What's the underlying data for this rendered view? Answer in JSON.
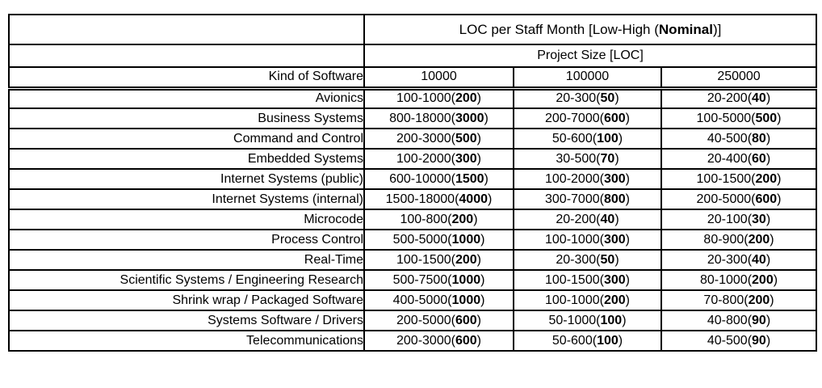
{
  "header": {
    "title_prefix": "LOC per Staff Month [Low-High (",
    "title_bold": "Nominal",
    "title_suffix": ")]",
    "subtitle": "Project Size [LOC]",
    "row_header": "Kind of Software",
    "size_columns": [
      "10000",
      "100000",
      "250000"
    ]
  },
  "rows": [
    {
      "kind": "Avionics",
      "cells": [
        {
          "range": "100-1000",
          "nominal": "200"
        },
        {
          "range": "20-300",
          "nominal": "50"
        },
        {
          "range": "20-200",
          "nominal": "40"
        }
      ]
    },
    {
      "kind": "Business Systems",
      "cells": [
        {
          "range": "800-18000",
          "nominal": "3000"
        },
        {
          "range": "200-7000",
          "nominal": "600"
        },
        {
          "range": "100-5000",
          "nominal": "500"
        }
      ]
    },
    {
      "kind": "Command and Control",
      "cells": [
        {
          "range": "200-3000",
          "nominal": "500"
        },
        {
          "range": "50-600",
          "nominal": "100"
        },
        {
          "range": "40-500",
          "nominal": "80"
        }
      ]
    },
    {
      "kind": "Embedded Systems",
      "cells": [
        {
          "range": "100-2000",
          "nominal": "300"
        },
        {
          "range": "30-500",
          "nominal": "70"
        },
        {
          "range": "20-400",
          "nominal": "60"
        }
      ]
    },
    {
      "kind": "Internet Systems (public)",
      "cells": [
        {
          "range": "600-10000",
          "nominal": "1500"
        },
        {
          "range": "100-2000",
          "nominal": "300"
        },
        {
          "range": "100-1500",
          "nominal": "200"
        }
      ]
    },
    {
      "kind": "Internet Systems (internal)",
      "cells": [
        {
          "range": "1500-18000",
          "nominal": "4000"
        },
        {
          "range": "300-7000",
          "nominal": "800"
        },
        {
          "range": "200-5000",
          "nominal": "600"
        }
      ]
    },
    {
      "kind": "Microcode",
      "cells": [
        {
          "range": "100-800",
          "nominal": "200"
        },
        {
          "range": "20-200",
          "nominal": "40"
        },
        {
          "range": "20-100",
          "nominal": "30"
        }
      ]
    },
    {
      "kind": "Process Control",
      "cells": [
        {
          "range": "500-5000",
          "nominal": "1000"
        },
        {
          "range": "100-1000",
          "nominal": "300"
        },
        {
          "range": "80-900",
          "nominal": "200"
        }
      ]
    },
    {
      "kind": "Real-Time",
      "cells": [
        {
          "range": "100-1500",
          "nominal": "200"
        },
        {
          "range": "20-300",
          "nominal": "50"
        },
        {
          "range": "20-300",
          "nominal": "40"
        }
      ]
    },
    {
      "kind": "Scientific Systems / Engineering Research",
      "cells": [
        {
          "range": "500-7500",
          "nominal": "1000"
        },
        {
          "range": "100-1500",
          "nominal": "300"
        },
        {
          "range": "80-1000",
          "nominal": "200"
        }
      ]
    },
    {
      "kind": "Shrink wrap / Packaged Software",
      "cells": [
        {
          "range": "400-5000",
          "nominal": "1000"
        },
        {
          "range": "100-1000",
          "nominal": "200"
        },
        {
          "range": "70-800",
          "nominal": "200"
        }
      ]
    },
    {
      "kind": "Systems Software / Drivers",
      "cells": [
        {
          "range": "200-5000",
          "nominal": "600"
        },
        {
          "range": "50-1000",
          "nominal": "100"
        },
        {
          "range": "40-800",
          "nominal": "90"
        }
      ]
    },
    {
      "kind": "Telecommunications",
      "cells": [
        {
          "range": "200-3000",
          "nominal": "600"
        },
        {
          "range": "50-600",
          "nominal": "100"
        },
        {
          "range": "40-500",
          "nominal": "90"
        }
      ]
    }
  ],
  "colors": {
    "border": "#000000",
    "text": "#000000",
    "background": "#ffffff"
  }
}
